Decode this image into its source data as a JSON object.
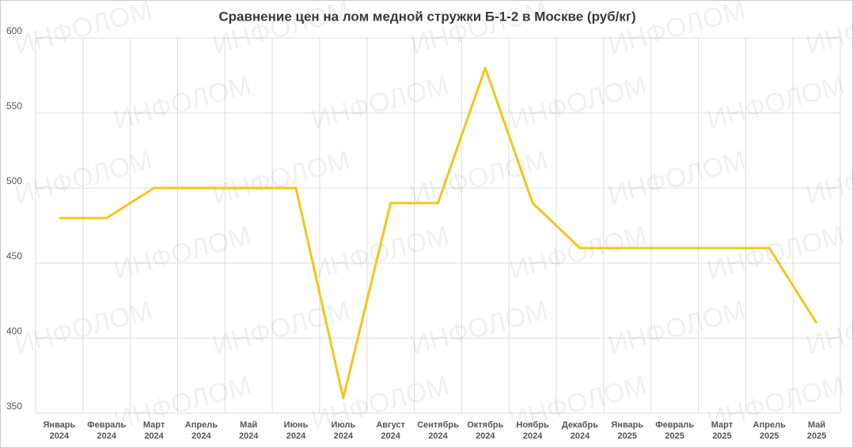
{
  "chart_data": {
    "type": "line",
    "title": "Сравнение цен на лом медной стружки Б-1-2 в Москве (руб/кг)",
    "watermark": "ИНФОЛОМ",
    "categories": [
      "Январь 2024",
      "Февраль 2024",
      "Март 2024",
      "Апрель 2024",
      "Май 2024",
      "Июнь 2024",
      "Июль 2024",
      "Август 2024",
      "Сентябрь 2024",
      "Октябрь 2024",
      "Ноябрь 2024",
      "Декабрь 2024",
      "Январь 2025",
      "Февраль 2025",
      "Март 2025",
      "Апрель 2025",
      "Май 2025"
    ],
    "values": [
      480,
      480,
      500,
      500,
      500,
      500,
      360,
      490,
      490,
      580,
      490,
      460,
      460,
      460,
      460,
      460,
      410
    ],
    "color": "#f5c518",
    "ylim": [
      350,
      600
    ],
    "yticks": [
      350,
      400,
      450,
      500,
      550,
      600
    ],
    "grid": true
  }
}
